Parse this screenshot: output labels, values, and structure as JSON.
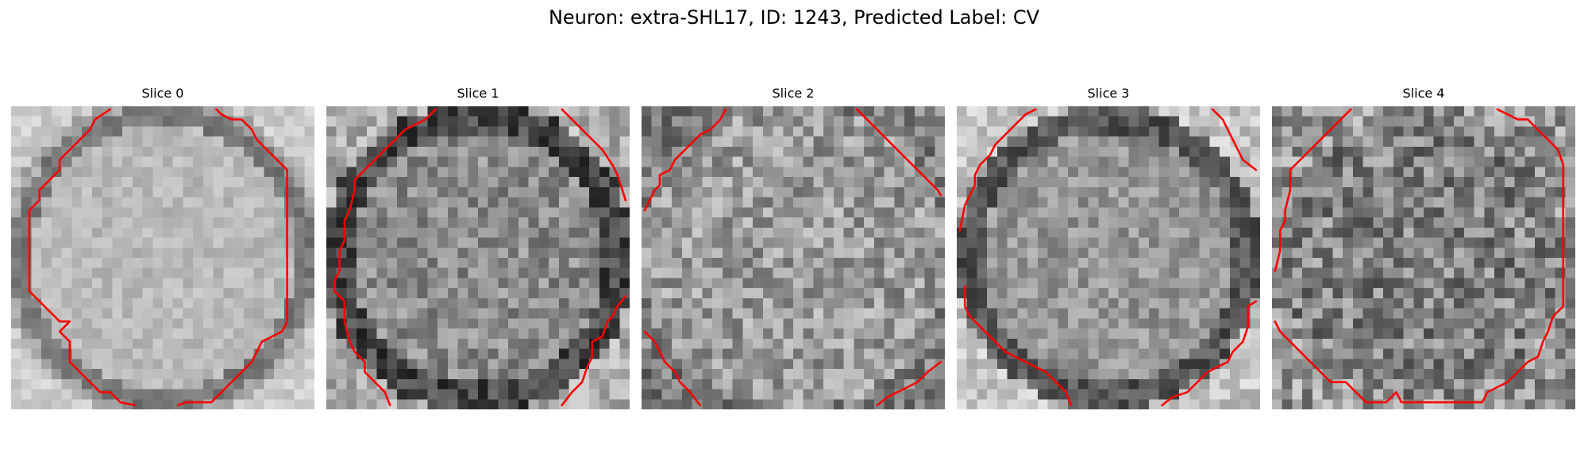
{
  "figure": {
    "title": "Neuron: extra-SHL17, ID: 1243, Predicted Label: CV"
  },
  "panels": [
    {
      "title": "Slice 0",
      "seed": 11,
      "style": "bright-disk"
    },
    {
      "title": "Slice 1",
      "seed": 23,
      "style": "dark-ring"
    },
    {
      "title": "Slice 2",
      "seed": 37,
      "style": "noisy"
    },
    {
      "title": "Slice 3",
      "seed": 41,
      "style": "dark-ring-soft"
    },
    {
      "title": "Slice 4",
      "seed": 59,
      "style": "noisy-dark"
    }
  ],
  "colors": {
    "contour": "#ff0000",
    "colormap": "gray"
  }
}
